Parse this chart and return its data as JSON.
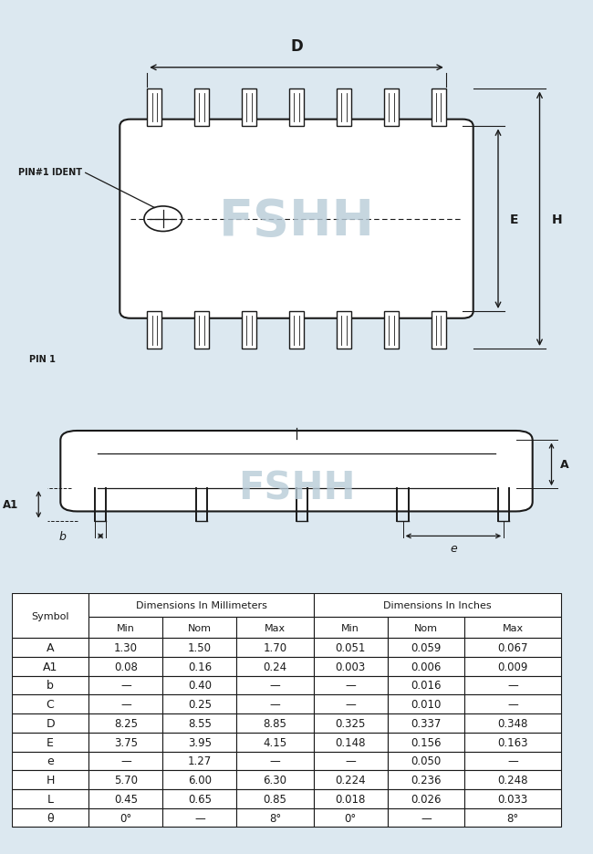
{
  "bg_color": "#dce8f0",
  "line_color": "#1a1a1a",
  "watermark_color": "#b8ccd8",
  "watermark_text": "FSHH",
  "table_data": {
    "symbols": [
      "A",
      "A1",
      "b",
      "C",
      "D",
      "E",
      "e",
      "H",
      "L",
      "θ"
    ],
    "mm_min": [
      "1.30",
      "0.08",
      "—",
      "—",
      "8.25",
      "3.75",
      "—",
      "5.70",
      "0.45",
      "0°"
    ],
    "mm_nom": [
      "1.50",
      "0.16",
      "0.40",
      "0.25",
      "8.55",
      "3.95",
      "1.27",
      "6.00",
      "0.65",
      "—"
    ],
    "mm_max": [
      "1.70",
      "0.24",
      "—",
      "—",
      "8.85",
      "4.15",
      "—",
      "6.30",
      "0.85",
      "8°"
    ],
    "in_min": [
      "0.051",
      "0.003",
      "—",
      "—",
      "0.325",
      "0.148",
      "—",
      "0.224",
      "0.018",
      "0°"
    ],
    "in_nom": [
      "0.059",
      "0.006",
      "0.016",
      "0.010",
      "0.337",
      "0.156",
      "0.050",
      "0.236",
      "0.026",
      "—"
    ],
    "in_max": [
      "0.067",
      "0.009",
      "—",
      "—",
      "0.348",
      "0.163",
      "—",
      "0.248",
      "0.033",
      "8°"
    ]
  },
  "num_pins_per_side": 7
}
